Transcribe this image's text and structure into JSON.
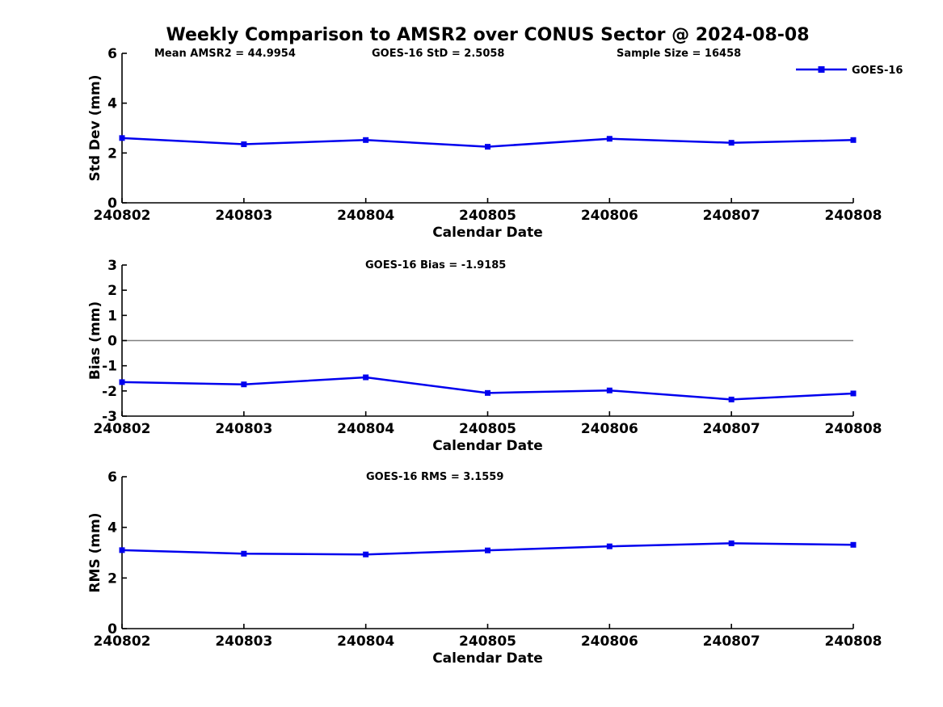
{
  "title": "Weekly Comparison to AMSR2 over CONUS Sector @ 2024-08-08",
  "colors": {
    "series_line": "#0000EE",
    "zero_line": "#808080",
    "axis": "#000000",
    "text": "#000000"
  },
  "legend": {
    "label": "GOES-16"
  },
  "chart_data": [
    {
      "id": "stddev",
      "type": "line",
      "title": "",
      "annotations": [
        "Mean AMSR2 = 44.9954",
        "GOES-16 StD = 2.5058",
        "Sample Size = 16458"
      ],
      "categories": [
        "240802",
        "240803",
        "240804",
        "240805",
        "240806",
        "240807",
        "240808"
      ],
      "series": [
        {
          "name": "GOES-16",
          "values": [
            2.6,
            2.35,
            2.52,
            2.25,
            2.57,
            2.41,
            2.52
          ]
        }
      ],
      "xlabel": "Calendar Date",
      "ylabel": "Std Dev (mm)",
      "ylim": [
        0,
        6
      ],
      "yticks": [
        0,
        2,
        4,
        6
      ],
      "yticklabels": [
        "0",
        "2",
        "4",
        "6"
      ],
      "grid": false,
      "legend_visible": true,
      "legend_position": "top-right",
      "zero_line": false
    },
    {
      "id": "bias",
      "type": "line",
      "title": "",
      "annotations": [
        "GOES-16 Bias  = -1.9185"
      ],
      "categories": [
        "240802",
        "240803",
        "240804",
        "240805",
        "240806",
        "240807",
        "240808"
      ],
      "series": [
        {
          "name": "GOES-16",
          "values": [
            -1.65,
            -1.74,
            -1.46,
            -2.08,
            -1.98,
            -2.34,
            -2.1
          ]
        }
      ],
      "xlabel": "Calendar Date",
      "ylabel": "Bias (mm)",
      "ylim": [
        -3,
        3
      ],
      "yticks": [
        -3,
        -2,
        -1,
        0,
        1,
        2,
        3
      ],
      "yticklabels": [
        "-3",
        "-2",
        "-1",
        "0",
        "1",
        "2",
        "3"
      ],
      "grid": false,
      "legend_visible": false,
      "zero_line": true
    },
    {
      "id": "rms",
      "type": "line",
      "title": "",
      "annotations": [
        "GOES-16 RMS = 3.1559"
      ],
      "categories": [
        "240802",
        "240803",
        "240804",
        "240805",
        "240806",
        "240807",
        "240808"
      ],
      "series": [
        {
          "name": "GOES-16",
          "values": [
            3.1,
            2.96,
            2.93,
            3.09,
            3.25,
            3.37,
            3.31
          ]
        }
      ],
      "xlabel": "Calendar Date",
      "ylabel": "RMS (mm)",
      "ylim": [
        0,
        6
      ],
      "yticks": [
        0,
        2,
        4,
        6
      ],
      "yticklabels": [
        "0",
        "2",
        "4",
        "6"
      ],
      "grid": false,
      "legend_visible": false,
      "zero_line": false
    }
  ]
}
